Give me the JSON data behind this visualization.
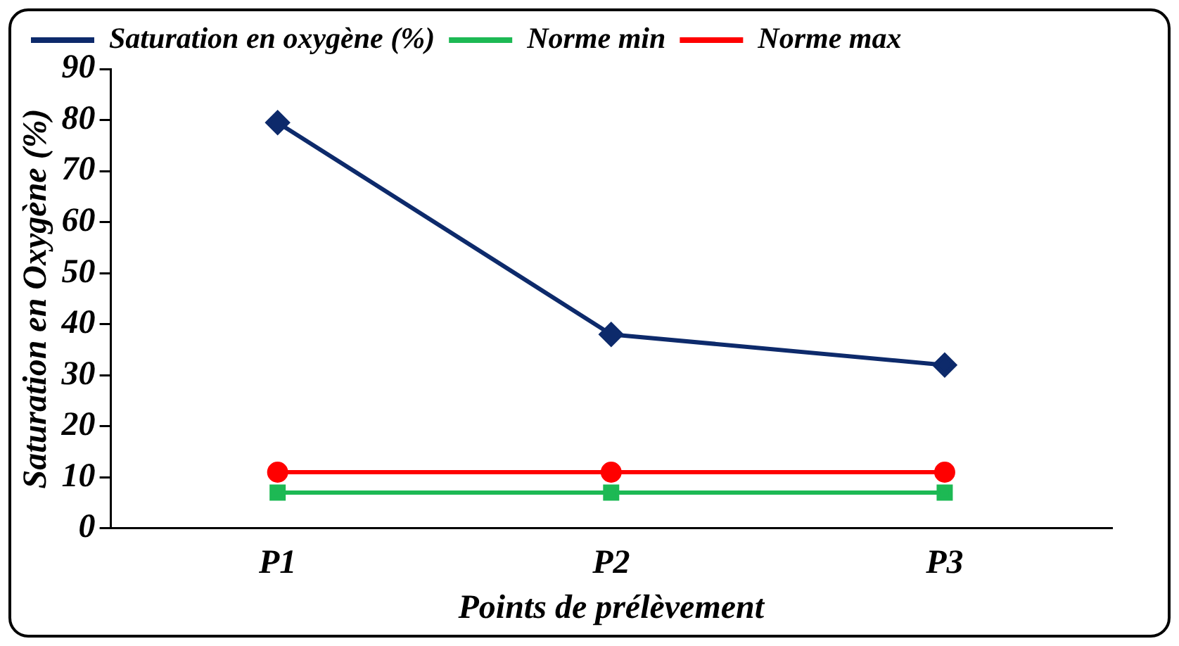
{
  "chart_data": {
    "type": "line",
    "xlabel": "Points de prélèvement",
    "ylabel": "Saturation en Oxygène (%)",
    "categories": [
      "P1",
      "P2",
      "P3"
    ],
    "series": [
      {
        "name": "Saturation en oxygène (%)",
        "color": "#0d2a6b",
        "values": [
          79.5,
          38,
          32
        ],
        "marker": "diamond"
      },
      {
        "name": "Norme min",
        "color": "#1db954",
        "values": [
          7,
          7,
          7
        ],
        "marker": "square"
      },
      {
        "name": "Norme max",
        "color": "#ff0000",
        "values": [
          11,
          11,
          11
        ],
        "marker": "circle"
      }
    ],
    "ylim": [
      0,
      90
    ],
    "yticks": [
      0,
      10,
      20,
      30,
      40,
      50,
      60,
      70,
      80,
      90
    ],
    "grid": false,
    "legend": "top",
    "line_style": "solid"
  }
}
